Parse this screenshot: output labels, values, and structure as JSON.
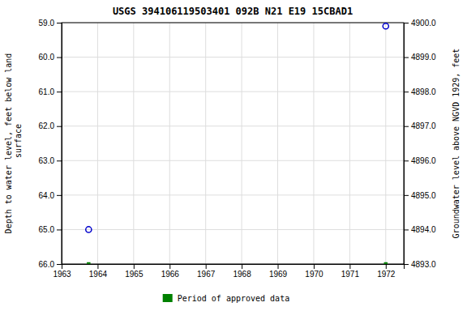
{
  "chart_data": {
    "type": "scatter",
    "title": "USGS 394106119503401 092B N21 E19 15CBAD1",
    "y_label": "Depth to water level, feet below land\n surface",
    "y2_label": "Groundwater level above NGVD 1929, feet",
    "xlim": [
      1963,
      1972.5
    ],
    "xticks": [
      1963,
      1964,
      1965,
      1966,
      1967,
      1968,
      1969,
      1970,
      1971,
      1972
    ],
    "ylim": [
      66.0,
      59.0
    ],
    "yticks": [
      {
        "value": 59.0,
        "label": "59.0"
      },
      {
        "value": 60.0,
        "label": "60.0"
      },
      {
        "value": 61.0,
        "label": "61.0"
      },
      {
        "value": 62.0,
        "label": "62.0"
      },
      {
        "value": 63.0,
        "label": "63.0"
      },
      {
        "value": 64.0,
        "label": "64.0"
      },
      {
        "value": 65.0,
        "label": "65.0"
      },
      {
        "value": 66.0,
        "label": "66.0"
      }
    ],
    "y2lim": [
      4893.0,
      4900.0
    ],
    "y2ticks": [
      {
        "value": 4900.0,
        "label": "4900.0"
      },
      {
        "value": 4899.0,
        "label": "4899.0"
      },
      {
        "value": 4898.0,
        "label": "4898.0"
      },
      {
        "value": 4897.0,
        "label": "4897.0"
      },
      {
        "value": 4896.0,
        "label": "4896.0"
      },
      {
        "value": 4895.0,
        "label": "4895.0"
      },
      {
        "value": 4894.0,
        "label": "4894.0"
      },
      {
        "value": 4893.0,
        "label": "4893.0"
      }
    ],
    "grid": true,
    "legend": "bottom",
    "series": [
      {
        "color": "#0000cc",
        "marker": "circle",
        "x": [
          1963.75,
          1972.0
        ],
        "values": [
          65.0,
          59.1
        ]
      },
      {
        "name": "Period of approved data",
        "color": "#008000",
        "marker": "square",
        "x": [
          1963.75,
          1972.0
        ],
        "values": [
          66.0,
          66.0
        ]
      }
    ]
  }
}
